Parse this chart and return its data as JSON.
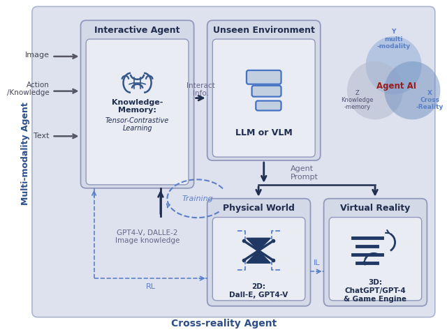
{
  "dark_blue": "#1f3864",
  "medium_blue": "#2e4f8a",
  "slate_blue": "#4472c4",
  "dashed_blue": "#5b80c8",
  "light_gray_bg": "#e8eaf0",
  "panel_bg": "#dde2ee",
  "box_outer": "#c8cfe0",
  "box_inner": "#eaecf4",
  "red_color": "#9b1c1c",
  "text_dark": "#1f2d4e",
  "text_gray": "#666688",
  "left_label": "Multi-modality Agent",
  "bottom_label": "Cross-reality Agent",
  "venn_y": "Y\nmulti\n-modality",
  "venn_z": "Z\nKnowledge\n-memory",
  "venn_x": "X\nCross\n-Reality",
  "venn_center": "Agent AI"
}
